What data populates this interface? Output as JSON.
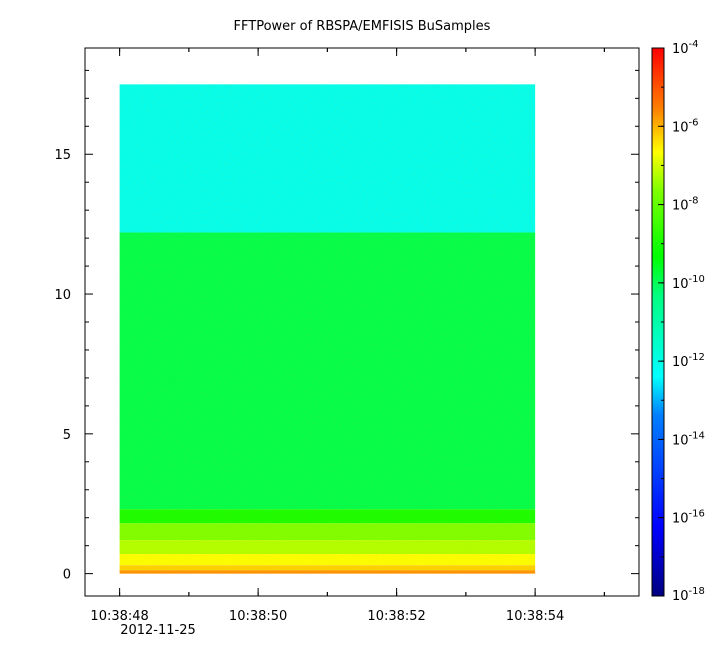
{
  "chart_data": {
    "type": "heatmap",
    "title": "FFTPower of RBSPA/EMFISIS  BuSamples",
    "xlabel": "",
    "ylabel": "",
    "x_range": [
      "10:38:47.5",
      "10:38:55.5"
    ],
    "data_extent_x": [
      "10:38:48",
      "10:38:54"
    ],
    "x_ticks": [
      "10:38:48",
      "10:38:50",
      "10:38:52",
      "10:38:54"
    ],
    "x_tick_sublabel": "2012-11-25",
    "ylim": [
      -0.8,
      18.8
    ],
    "data_extent_y": [
      0,
      17.5
    ],
    "y_ticks": [
      "0",
      "5",
      "10",
      "15"
    ],
    "colorbar": {
      "scale": "log",
      "range": [
        1e-18,
        0.0001
      ],
      "tick_base": "10",
      "tick_exponents": [
        "-4",
        "-6",
        "-8",
        "-10",
        "-12",
        "-14",
        "-16",
        "-18"
      ],
      "colormap": [
        "#00007f",
        "#0000ff",
        "#007fff",
        "#00ffff",
        "#00ff00",
        "#ffff00",
        "#ff7f00",
        "#ff0000"
      ]
    },
    "bands": [
      {
        "y_from": 12.2,
        "y_to": 17.5,
        "log_power": -11.9
      },
      {
        "y_from": 2.3,
        "y_to": 12.2,
        "log_power": -10.6
      },
      {
        "y_from": 1.8,
        "y_to": 2.3,
        "log_power": -9.8
      },
      {
        "y_from": 1.2,
        "y_to": 1.8,
        "log_power": -9.0
      },
      {
        "y_from": 0.7,
        "y_to": 1.2,
        "log_power": -8.6
      },
      {
        "y_from": 0.3,
        "y_to": 0.7,
        "log_power": -8.0
      },
      {
        "y_from": 0.12,
        "y_to": 0.3,
        "log_power": -7.3
      },
      {
        "y_from": 0.0,
        "y_to": 0.12,
        "log_power": -6.3
      }
    ]
  }
}
